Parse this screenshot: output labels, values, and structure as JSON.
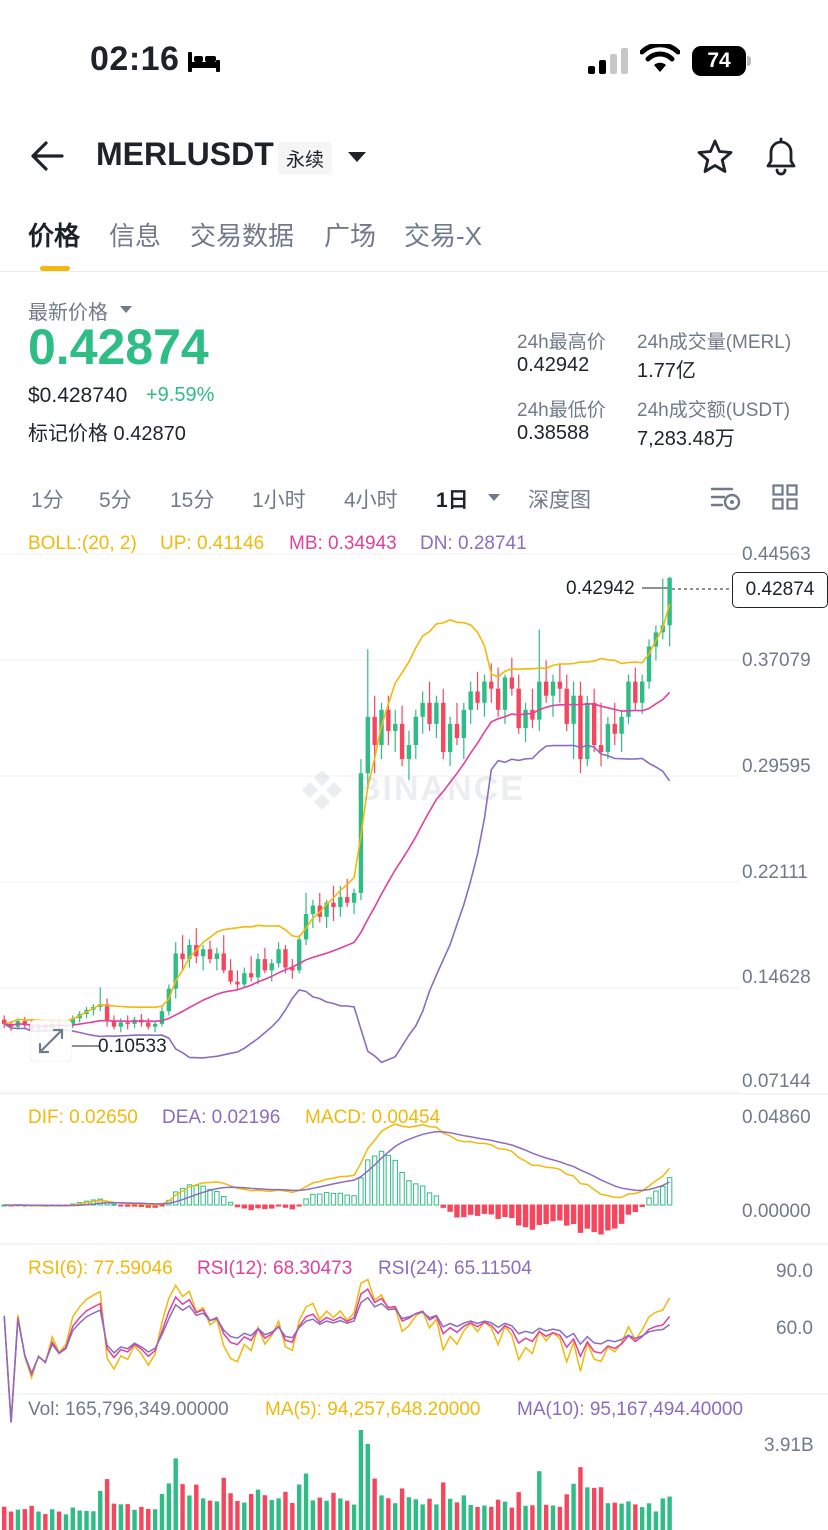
{
  "status_bar": {
    "time": "02:16",
    "battery": "74"
  },
  "header": {
    "symbol": "MERLUSDT",
    "contract_type": "永续"
  },
  "tabs": [
    "价格",
    "信息",
    "交易数据",
    "广场",
    "交易-X"
  ],
  "price": {
    "label": "最新价格",
    "last": "0.42874",
    "usd": "$0.428740",
    "change": "+9.59%",
    "mark_label_full": "标记价格 0.42870"
  },
  "stats": {
    "high_label": "24h最高价",
    "high": "0.42942",
    "low_label": "24h最低价",
    "low": "0.38588",
    "vol_label": "24h成交量(MERL)",
    "vol": "1.77亿",
    "turnover_label": "24h成交额(USDT)",
    "turnover": "7,283.48万"
  },
  "intervals": [
    "1分",
    "5分",
    "15分",
    "1小时",
    "4小时",
    "1日",
    "深度图"
  ],
  "active_interval": "1日",
  "indicators": {
    "boll": {
      "name": "BOLL:(20, 2)",
      "up": "UP: 0.41146",
      "mb": "MB: 0.34943",
      "dn": "DN: 0.28741"
    },
    "macd": {
      "dif": "DIF: 0.02650",
      "dea": "DEA: 0.02196",
      "macd": "MACD: 0.00454"
    },
    "rsi": {
      "rsi6": "RSI(6): 77.59046",
      "rsi12": "RSI(12): 68.30473",
      "rsi24": "RSI(24): 65.11504"
    },
    "vol": {
      "vol": "Vol: 165,796,349.00000",
      "ma5": "MA(5): 94,257,648.20000",
      "ma10": "MA(10): 95,167,494.40000"
    }
  },
  "y_axis": {
    "price": [
      "0.44563",
      "0.37079",
      "0.29595",
      "0.22111",
      "0.14628",
      "0.07144"
    ],
    "macd": [
      "0.04860",
      "0.00000"
    ],
    "rsi": [
      "90.0",
      "60.0"
    ],
    "vol": [
      "3.91B"
    ]
  },
  "chart_labels": {
    "current": "0.42874",
    "high": "0.42942",
    "low": "0.10533"
  },
  "watermark": "BINANCE",
  "colors": {
    "up": "#2ebd85",
    "down": "#f6465d",
    "accent": "#f0b90b",
    "mb": "#e040a0",
    "dn": "#8b6cc0"
  },
  "chart_data": {
    "type": "candlestick",
    "series_ohlc": [
      [
        0.115,
        0.118,
        0.109,
        0.112
      ],
      [
        0.112,
        0.114,
        0.107,
        0.11
      ],
      [
        0.11,
        0.116,
        0.108,
        0.114
      ],
      [
        0.114,
        0.117,
        0.109,
        0.111
      ],
      [
        0.111,
        0.115,
        0.106,
        0.108
      ],
      [
        0.108,
        0.112,
        0.105,
        0.11
      ],
      [
        0.11,
        0.113,
        0.107,
        0.109
      ],
      [
        0.109,
        0.114,
        0.106,
        0.112
      ],
      [
        0.112,
        0.115,
        0.108,
        0.11
      ],
      [
        0.11,
        0.113,
        0.107,
        0.111
      ],
      [
        0.111,
        0.118,
        0.109,
        0.116
      ],
      [
        0.116,
        0.121,
        0.113,
        0.119
      ],
      [
        0.119,
        0.124,
        0.116,
        0.122
      ],
      [
        0.122,
        0.126,
        0.118,
        0.124
      ],
      [
        0.124,
        0.138,
        0.121,
        0.126
      ],
      [
        0.126,
        0.13,
        0.11,
        0.114
      ],
      [
        0.114,
        0.118,
        0.108,
        0.11
      ],
      [
        0.11,
        0.116,
        0.106,
        0.113
      ],
      [
        0.113,
        0.118,
        0.108,
        0.112
      ],
      [
        0.112,
        0.117,
        0.109,
        0.115
      ],
      [
        0.115,
        0.119,
        0.11,
        0.113
      ],
      [
        0.113,
        0.116,
        0.108,
        0.11
      ],
      [
        0.11,
        0.114,
        0.106,
        0.112
      ],
      [
        0.112,
        0.125,
        0.11,
        0.121
      ],
      [
        0.121,
        0.14,
        0.118,
        0.137
      ],
      [
        0.137,
        0.17,
        0.13,
        0.162
      ],
      [
        0.162,
        0.175,
        0.15,
        0.158
      ],
      [
        0.158,
        0.172,
        0.152,
        0.168
      ],
      [
        0.168,
        0.18,
        0.155,
        0.16
      ],
      [
        0.16,
        0.168,
        0.15,
        0.165
      ],
      [
        0.165,
        0.171,
        0.155,
        0.158
      ],
      [
        0.158,
        0.166,
        0.15,
        0.162
      ],
      [
        0.162,
        0.175,
        0.148,
        0.15
      ],
      [
        0.15,
        0.158,
        0.14,
        0.142
      ],
      [
        0.142,
        0.15,
        0.136,
        0.14
      ],
      [
        0.14,
        0.152,
        0.138,
        0.148
      ],
      [
        0.148,
        0.16,
        0.142,
        0.145
      ],
      [
        0.145,
        0.162,
        0.14,
        0.158
      ],
      [
        0.158,
        0.166,
        0.148,
        0.15
      ],
      [
        0.15,
        0.158,
        0.142,
        0.155
      ],
      [
        0.155,
        0.17,
        0.152,
        0.165
      ],
      [
        0.165,
        0.168,
        0.148,
        0.152
      ],
      [
        0.152,
        0.158,
        0.144,
        0.15
      ],
      [
        0.15,
        0.175,
        0.148,
        0.172
      ],
      [
        0.172,
        0.205,
        0.168,
        0.19
      ],
      [
        0.19,
        0.2,
        0.18,
        0.196
      ],
      [
        0.196,
        0.205,
        0.184,
        0.188
      ],
      [
        0.188,
        0.2,
        0.18,
        0.198
      ],
      [
        0.198,
        0.21,
        0.185,
        0.195
      ],
      [
        0.195,
        0.21,
        0.188,
        0.202
      ],
      [
        0.202,
        0.215,
        0.195,
        0.198
      ],
      [
        0.198,
        0.208,
        0.19,
        0.205
      ],
      [
        0.205,
        0.3,
        0.2,
        0.29
      ],
      [
        0.29,
        0.378,
        0.28,
        0.33
      ],
      [
        0.33,
        0.345,
        0.29,
        0.31
      ],
      [
        0.31,
        0.34,
        0.3,
        0.335
      ],
      [
        0.335,
        0.345,
        0.31,
        0.32
      ],
      [
        0.32,
        0.335,
        0.305,
        0.325
      ],
      [
        0.325,
        0.338,
        0.295,
        0.3
      ],
      [
        0.3,
        0.32,
        0.285,
        0.31
      ],
      [
        0.31,
        0.335,
        0.3,
        0.33
      ],
      [
        0.33,
        0.348,
        0.318,
        0.34
      ],
      [
        0.34,
        0.355,
        0.32,
        0.325
      ],
      [
        0.325,
        0.345,
        0.315,
        0.34
      ],
      [
        0.34,
        0.35,
        0.3,
        0.305
      ],
      [
        0.305,
        0.33,
        0.295,
        0.325
      ],
      [
        0.325,
        0.34,
        0.31,
        0.315
      ],
      [
        0.315,
        0.34,
        0.3,
        0.335
      ],
      [
        0.335,
        0.355,
        0.325,
        0.348
      ],
      [
        0.348,
        0.362,
        0.335,
        0.34
      ],
      [
        0.34,
        0.36,
        0.33,
        0.355
      ],
      [
        0.355,
        0.368,
        0.34,
        0.35
      ],
      [
        0.35,
        0.365,
        0.33,
        0.335
      ],
      [
        0.335,
        0.36,
        0.325,
        0.358
      ],
      [
        0.358,
        0.372,
        0.345,
        0.35
      ],
      [
        0.35,
        0.36,
        0.318,
        0.322
      ],
      [
        0.322,
        0.34,
        0.312,
        0.335
      ],
      [
        0.335,
        0.35,
        0.322,
        0.328
      ],
      [
        0.328,
        0.392,
        0.32,
        0.355
      ],
      [
        0.355,
        0.37,
        0.34,
        0.345
      ],
      [
        0.345,
        0.36,
        0.33,
        0.355
      ],
      [
        0.355,
        0.368,
        0.34,
        0.35
      ],
      [
        0.35,
        0.36,
        0.32,
        0.325
      ],
      [
        0.325,
        0.355,
        0.3,
        0.345
      ],
      [
        0.345,
        0.355,
        0.29,
        0.3
      ],
      [
        0.3,
        0.345,
        0.295,
        0.34
      ],
      [
        0.34,
        0.35,
        0.305,
        0.31
      ],
      [
        0.31,
        0.34,
        0.295,
        0.305
      ],
      [
        0.305,
        0.33,
        0.3,
        0.325
      ],
      [
        0.325,
        0.34,
        0.31,
        0.318
      ],
      [
        0.318,
        0.335,
        0.305,
        0.33
      ],
      [
        0.33,
        0.36,
        0.325,
        0.355
      ],
      [
        0.355,
        0.365,
        0.335,
        0.34
      ],
      [
        0.34,
        0.36,
        0.332,
        0.355
      ],
      [
        0.355,
        0.385,
        0.35,
        0.38
      ],
      [
        0.38,
        0.395,
        0.37,
        0.39
      ],
      [
        0.39,
        0.428,
        0.385,
        0.395
      ],
      [
        0.395,
        0.4294,
        0.38,
        0.4287
      ]
    ],
    "price_ylim": [
      0.07144,
      0.44563
    ],
    "macd_ylim": [
      -0.02,
      0.0486
    ],
    "rsi_ylim": [
      20,
      100
    ]
  }
}
